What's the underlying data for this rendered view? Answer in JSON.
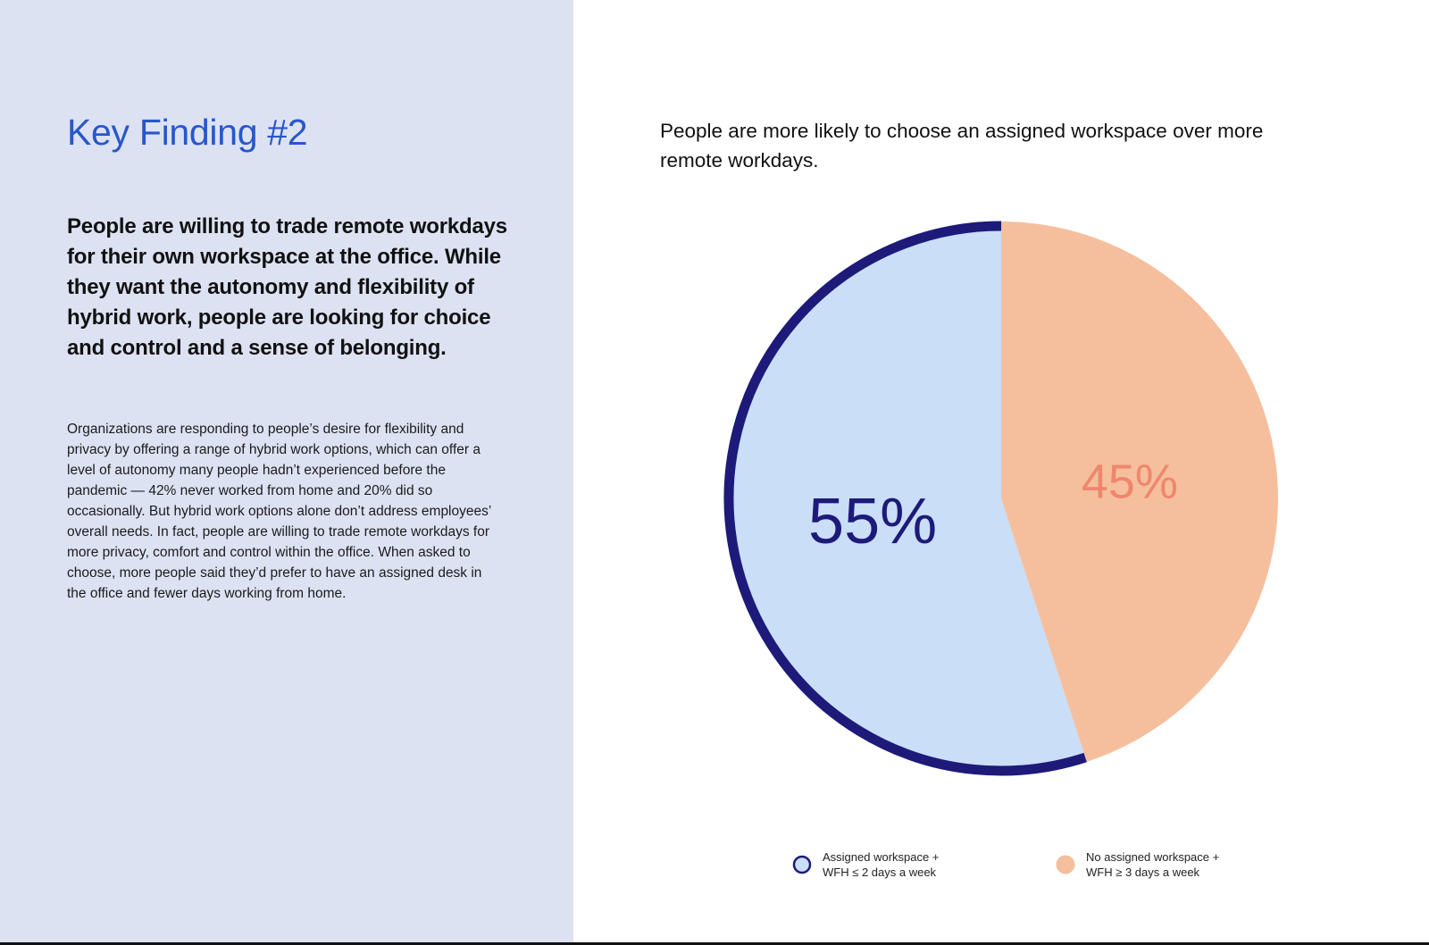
{
  "left": {
    "title": "Key Finding #2",
    "lead": "People are willing to trade remote workdays for their own workspace at the office. While they want the autonomy and flexibility of hybrid work, people are looking for choice and control and a sense of belonging.",
    "body": "Organizations are responding to people’s desire for flexibility and privacy by offering a range of hybrid work options, which can offer a level of autonomy many people hadn’t experienced before the pandemic — 42% never worked from home and 20% did so occasionally. But hybrid work options alone don’t address employees’ overall needs. In fact, people are willing to trade remote workdays for more privacy, comfort and control within the office. When asked to choose, more people said they’d prefer to have an assigned desk in the office and fewer days working from home.",
    "background": "#dde2f3",
    "title_color": "#2757c9"
  },
  "chart_data": {
    "type": "pie",
    "title": "People are more likely to choose an assigned workspace over more remote workdays.",
    "legend_position": "bottom",
    "slices": [
      {
        "label_lines": [
          "Assigned workspace +",
          "WFH ≤ 2 days a week"
        ],
        "value": 55,
        "display": "55%",
        "fill": "#cadef7",
        "stroke": "#1d1a7a",
        "label_color": "#1d1a7a"
      },
      {
        "label_lines": [
          "No assigned workspace +",
          "WFH ≥ 3 days a week"
        ],
        "value": 45,
        "display": "45%",
        "fill": "#f5bf9d",
        "stroke": "none",
        "label_color": "#ef866d"
      }
    ]
  }
}
